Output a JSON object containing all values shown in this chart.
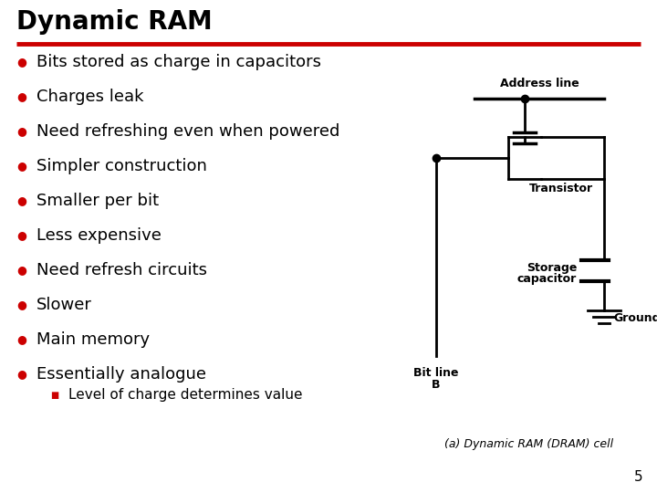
{
  "title": "Dynamic RAM",
  "title_fontsize": 20,
  "red_line_color": "#cc0000",
  "bullet_color": "#cc0000",
  "bullet_char": "●",
  "sub_bullet_color": "#cc0000",
  "sub_bullet_char": "■",
  "text_color": "#000000",
  "bg_color": "#ffffff",
  "bullet_items": [
    "Bits stored as charge in capacitors",
    "Charges leak",
    "Need refreshing even when powered",
    "Simpler construction",
    "Smaller per bit",
    "Less expensive",
    "Need refresh circuits",
    "Slower",
    "Main memory",
    "Essentially analogue"
  ],
  "sub_bullet_items": [
    "Level of charge determines value"
  ],
  "sub_bullet_parent": 9,
  "bullet_fontsize": 13,
  "sub_bullet_fontsize": 11,
  "page_number": "5",
  "caption": "(a) Dynamic RAM (DRAM) cell",
  "diagram_labels": {
    "address_line": "Address line",
    "transistor": "Transistor",
    "storage_capacitor_1": "Storage",
    "storage_capacitor_2": "capacitor",
    "bit_line_1": "Bit line",
    "bit_line_2": "B",
    "ground": "Ground"
  }
}
